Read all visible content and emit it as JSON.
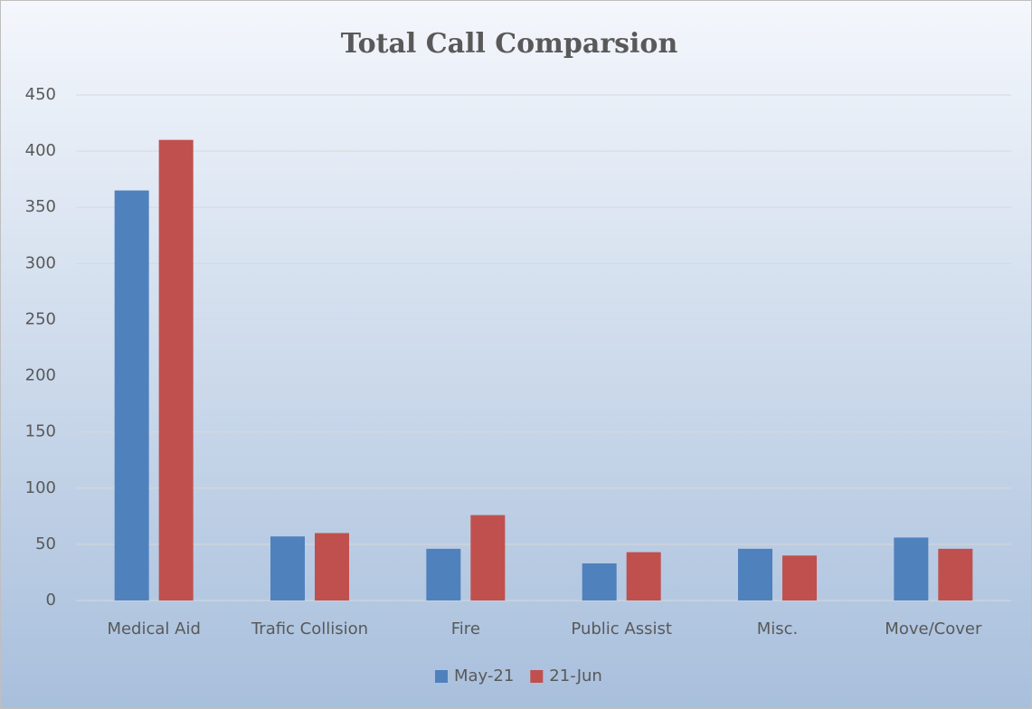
{
  "chart_data": {
    "type": "bar",
    "title": "Total Call Comparsion",
    "categories": [
      "Medical Aid",
      "Trafic Collision",
      "Fire",
      "Public Assist",
      "Misc.",
      "Move/Cover"
    ],
    "series": [
      {
        "name": "May-21",
        "color": "#4f81bd",
        "values": [
          365,
          57,
          46,
          33,
          46,
          56
        ]
      },
      {
        "name": "21-Jun",
        "color": "#c0504d",
        "values": [
          410,
          60,
          76,
          43,
          40,
          46
        ]
      }
    ],
    "ylim": [
      0,
      450
    ],
    "yticks": [
      0,
      50,
      100,
      150,
      200,
      250,
      300,
      350,
      400,
      450
    ],
    "grid": true,
    "legend": "bottom"
  }
}
